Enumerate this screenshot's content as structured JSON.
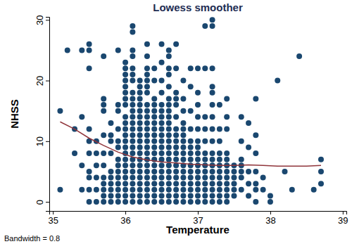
{
  "chart_data": {
    "type": "scatter",
    "title": "Lowess smoother",
    "x_label": "Temperature",
    "y_label": "NHSS",
    "note": "Bandwidth = 0.8",
    "xlim": [
      34.95,
      39.05
    ],
    "ylim": [
      -1.5,
      30.5
    ],
    "xticks": [
      35,
      36,
      37,
      38,
      39
    ],
    "yticks": [
      0,
      10,
      20,
      30
    ],
    "grid": false,
    "series": [
      {
        "type": "scatter",
        "color": "#1a476f",
        "marker": "circle",
        "x": [
          35.1,
          35.1,
          35.2,
          35.3,
          35.3,
          35.4,
          35.4,
          35.4,
          35.4,
          35.5,
          35.5,
          35.5,
          35.5,
          35.5,
          35.5,
          35.5,
          35.5,
          35.5,
          35.5,
          35.6,
          35.6,
          35.6,
          35.6,
          35.6,
          35.6,
          35.7,
          35.7,
          35.7,
          35.7,
          35.7,
          35.7,
          35.7,
          35.7,
          35.7,
          35.7,
          35.7,
          35.7,
          35.8,
          35.8,
          35.8,
          35.8,
          35.8,
          35.8,
          35.8,
          35.8,
          35.8,
          35.8,
          35.9,
          35.9,
          35.9,
          35.9,
          35.9,
          35.9,
          35.9,
          35.9,
          35.9,
          35.9,
          35.9,
          35.9,
          35.9,
          35.9,
          36,
          36,
          36,
          36,
          36,
          36,
          36,
          36,
          36,
          36,
          36,
          36,
          36,
          36,
          36,
          36,
          36,
          36,
          36,
          36,
          36,
          36,
          36,
          36.1,
          36.1,
          36.1,
          36.1,
          36.1,
          36.1,
          36.1,
          36.1,
          36.1,
          36.1,
          36.1,
          36.1,
          36.1,
          36.1,
          36.1,
          36.1,
          36.1,
          36.1,
          36.1,
          36.1,
          36.1,
          36.1,
          36.1,
          36.1,
          36.1,
          36.1,
          36.2,
          36.2,
          36.2,
          36.2,
          36.2,
          36.2,
          36.2,
          36.2,
          36.2,
          36.2,
          36.2,
          36.2,
          36.2,
          36.2,
          36.2,
          36.2,
          36.2,
          36.2,
          36.2,
          36.2,
          36.2,
          36.3,
          36.3,
          36.3,
          36.3,
          36.3,
          36.3,
          36.3,
          36.3,
          36.3,
          36.3,
          36.3,
          36.3,
          36.3,
          36.3,
          36.3,
          36.3,
          36.3,
          36.3,
          36.3,
          36.3,
          36.3,
          36.3,
          36.3,
          36.3,
          36.4,
          36.4,
          36.4,
          36.4,
          36.4,
          36.4,
          36.4,
          36.4,
          36.4,
          36.4,
          36.4,
          36.4,
          36.4,
          36.4,
          36.4,
          36.4,
          36.4,
          36.4,
          36.4,
          36.4,
          36.5,
          36.5,
          36.5,
          36.5,
          36.5,
          36.5,
          36.5,
          36.5,
          36.5,
          36.5,
          36.5,
          36.5,
          36.5,
          36.5,
          36.5,
          36.5,
          36.5,
          36.5,
          36.5,
          36.5,
          36.5,
          36.6,
          36.6,
          36.6,
          36.6,
          36.6,
          36.6,
          36.6,
          36.6,
          36.6,
          36.6,
          36.6,
          36.6,
          36.6,
          36.6,
          36.6,
          36.6,
          36.6,
          36.6,
          36.6,
          36.6,
          36.6,
          36.6,
          36.6,
          36.7,
          36.7,
          36.7,
          36.7,
          36.7,
          36.7,
          36.7,
          36.7,
          36.7,
          36.7,
          36.7,
          36.7,
          36.7,
          36.7,
          36.7,
          36.7,
          36.7,
          36.7,
          36.7,
          36.8,
          36.8,
          36.8,
          36.8,
          36.8,
          36.8,
          36.8,
          36.8,
          36.8,
          36.8,
          36.8,
          36.8,
          36.8,
          36.8,
          36.8,
          36.8,
          36.8,
          36.9,
          36.9,
          36.9,
          36.9,
          36.9,
          36.9,
          36.9,
          36.9,
          36.9,
          36.9,
          36.9,
          36.9,
          36.9,
          36.9,
          36.9,
          37,
          37,
          37,
          37,
          37,
          37,
          37,
          37,
          37,
          37,
          37,
          37,
          37,
          37,
          37,
          37,
          37.1,
          37.1,
          37.1,
          37.1,
          37.1,
          37.1,
          37.1,
          37.1,
          37.1,
          37.1,
          37.1,
          37.1,
          37.1,
          37.1,
          37.2,
          37.2,
          37.2,
          37.2,
          37.2,
          37.2,
          37.2,
          37.2,
          37.2,
          37.2,
          37.2,
          37.2,
          37.2,
          37.2,
          37.2,
          37.2,
          37.2,
          37.2,
          37.3,
          37.3,
          37.3,
          37.3,
          37.3,
          37.3,
          37.3,
          37.3,
          37.3,
          37.3,
          37.3,
          37.3,
          37.4,
          37.4,
          37.4,
          37.4,
          37.4,
          37.4,
          37.4,
          37.4,
          37.4,
          37.4,
          37.4,
          37.4,
          37.5,
          37.5,
          37.5,
          37.5,
          37.5,
          37.5,
          37.6,
          37.6,
          37.6,
          37.6,
          37.6,
          37.6,
          37.6,
          37.7,
          37.7,
          37.7,
          37.7,
          37.7,
          37.8,
          37.8,
          37.8,
          37.8,
          37.8,
          37.8,
          37.8,
          37.9,
          37.9,
          38,
          38,
          38.1,
          38.2,
          38.3,
          38.4,
          38.6,
          38.7,
          38.7,
          38.7
        ],
        "values": [
          15,
          2,
          25,
          12,
          8,
          25,
          14,
          6,
          2,
          26,
          25,
          22,
          12,
          10,
          8,
          5,
          4,
          2,
          0,
          10,
          8,
          6,
          4,
          2,
          0,
          24,
          17,
          16,
          15,
          11,
          8,
          6,
          4,
          3,
          2,
          1,
          0,
          13,
          11,
          10,
          8,
          5,
          4,
          3,
          2,
          1,
          0,
          25,
          16,
          15,
          12,
          10,
          9,
          7,
          6,
          5,
          4,
          3,
          2,
          1,
          0,
          23,
          22,
          21,
          20,
          19,
          18,
          17,
          16,
          14,
          13,
          12,
          11,
          10,
          9,
          8,
          7,
          6,
          5,
          4,
          3,
          2,
          1,
          0,
          29,
          28,
          25,
          24,
          22,
          21,
          20,
          18,
          17,
          16,
          15,
          14,
          13,
          12,
          11,
          10,
          9,
          8,
          7,
          6,
          5,
          4,
          3,
          2,
          1,
          0,
          20,
          19,
          18,
          17,
          16,
          15,
          14,
          13,
          12,
          11,
          10,
          9,
          8,
          7,
          6,
          5,
          4,
          3,
          2,
          1,
          0,
          26,
          24,
          22,
          21,
          20,
          19,
          18,
          16,
          15,
          14,
          13,
          12,
          11,
          10,
          9,
          8,
          7,
          6,
          5,
          4,
          3,
          2,
          1,
          0,
          22,
          20,
          17,
          16,
          15,
          14,
          13,
          12,
          11,
          10,
          9,
          8,
          7,
          6,
          5,
          4,
          3,
          2,
          1,
          0,
          26,
          23,
          20,
          18,
          16,
          15,
          14,
          13,
          12,
          11,
          10,
          9,
          8,
          7,
          6,
          5,
          4,
          3,
          2,
          1,
          0,
          25,
          24,
          22,
          21,
          19,
          17,
          16,
          15,
          14,
          13,
          12,
          11,
          10,
          9,
          8,
          7,
          6,
          5,
          4,
          3,
          2,
          1,
          0,
          26,
          22,
          18,
          17,
          16,
          14,
          12,
          11,
          10,
          9,
          8,
          7,
          6,
          5,
          4,
          3,
          2,
          1,
          0,
          20,
          17,
          15,
          13,
          12,
          11,
          10,
          9,
          8,
          7,
          6,
          5,
          4,
          3,
          2,
          1,
          0,
          22,
          19,
          15,
          12,
          10,
          9,
          8,
          7,
          6,
          5,
          4,
          3,
          2,
          1,
          0,
          22,
          18,
          16,
          14,
          12,
          10,
          9,
          8,
          7,
          6,
          5,
          4,
          3,
          2,
          1,
          0,
          29,
          22,
          14,
          12,
          10,
          8,
          7,
          6,
          5,
          4,
          3,
          2,
          1,
          0,
          30,
          29,
          22,
          19,
          18,
          16,
          14,
          12,
          10,
          8,
          7,
          6,
          5,
          4,
          3,
          2,
          1,
          0,
          16,
          12,
          10,
          8,
          7,
          6,
          5,
          4,
          3,
          2,
          1,
          0,
          17,
          14,
          12,
          8,
          7,
          6,
          5,
          4,
          3,
          2,
          1,
          0,
          6,
          5,
          4,
          3,
          2,
          1,
          14,
          10,
          7,
          6,
          5,
          4,
          2,
          13,
          9,
          5,
          3,
          1,
          17,
          11,
          8,
          5,
          3,
          2,
          0,
          4,
          2,
          1,
          0,
          20,
          5,
          2,
          24,
          2,
          7,
          5,
          3
        ]
      },
      {
        "type": "line",
        "color": "#90353b",
        "line_style": "solid",
        "x": [
          35.1,
          35.3,
          35.5,
          35.7,
          35.9,
          36.1,
          36.3,
          36.5,
          36.7,
          36.9,
          37.1,
          37.3,
          37.5,
          37.7,
          37.9,
          38.1,
          38.3,
          38.5,
          38.7
        ],
        "values": [
          13.2,
          12.0,
          10.5,
          9.3,
          8.2,
          7.4,
          6.9,
          6.6,
          6.4,
          6.2,
          6.1,
          6.0,
          6.0,
          6.1,
          6.0,
          5.9,
          5.9,
          5.9,
          6.0
        ]
      }
    ]
  }
}
